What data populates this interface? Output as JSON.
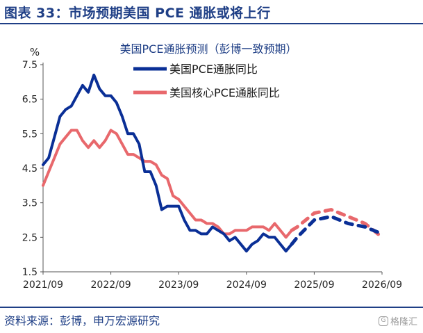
{
  "figure_title": "图表 33：市场预期美国 PCE 通胀或将上行",
  "source": "资料来源：彭博，申万宏源研究",
  "watermark": "格隆汇",
  "colors": {
    "brand": "#1f3f86",
    "pce": "#0a2f96",
    "core": "#e8686c"
  },
  "chart_data": {
    "type": "line",
    "title": "美国PCE通胀预测（彭博一致预期）",
    "ylabel": "%",
    "xlabel": "",
    "ylim": [
      1.5,
      7.5
    ],
    "yticks": [
      "7.5",
      "6.5",
      "5.5",
      "4.5",
      "3.5",
      "2.5",
      "1.5"
    ],
    "xticks": [
      "2021/09",
      "2022/09",
      "2023/09",
      "2024/09",
      "2025/09",
      "2026/09"
    ],
    "xlim": [
      "2021/09",
      "2026/09"
    ],
    "grid": false,
    "legend_position": "top",
    "series": [
      {
        "name": "美国PCE通胀同比",
        "actual_style": "solid",
        "forecast_style": "dashed",
        "actual": [
          [
            "2021/09",
            4.6
          ],
          [
            "2021/10",
            4.8
          ],
          [
            "2021/11",
            5.4
          ],
          [
            "2021/12",
            6.0
          ],
          [
            "2022/01",
            6.2
          ],
          [
            "2022/02",
            6.3
          ],
          [
            "2022/03",
            6.6
          ],
          [
            "2022/04",
            6.9
          ],
          [
            "2022/05",
            6.7
          ],
          [
            "2022/06",
            7.2
          ],
          [
            "2022/07",
            6.8
          ],
          [
            "2022/08",
            6.6
          ],
          [
            "2022/09",
            6.6
          ],
          [
            "2022/10",
            6.4
          ],
          [
            "2022/11",
            6.0
          ],
          [
            "2022/12",
            5.5
          ],
          [
            "2023/01",
            5.5
          ],
          [
            "2023/02",
            5.2
          ],
          [
            "2023/03",
            4.4
          ],
          [
            "2023/04",
            4.4
          ],
          [
            "2023/05",
            4.0
          ],
          [
            "2023/06",
            3.3
          ],
          [
            "2023/07",
            3.4
          ],
          [
            "2023/08",
            3.4
          ],
          [
            "2023/09",
            3.4
          ],
          [
            "2023/10",
            3.0
          ],
          [
            "2023/11",
            2.7
          ],
          [
            "2023/12",
            2.7
          ],
          [
            "2024/01",
            2.6
          ],
          [
            "2024/02",
            2.6
          ],
          [
            "2024/03",
            2.8
          ],
          [
            "2024/04",
            2.7
          ],
          [
            "2024/05",
            2.6
          ],
          [
            "2024/06",
            2.4
          ],
          [
            "2024/07",
            2.5
          ],
          [
            "2024/08",
            2.3
          ],
          [
            "2024/09",
            2.1
          ],
          [
            "2024/10",
            2.3
          ],
          [
            "2024/11",
            2.4
          ],
          [
            "2024/12",
            2.6
          ],
          [
            "2025/01",
            2.5
          ],
          [
            "2025/02",
            2.5
          ],
          [
            "2025/03",
            2.3
          ],
          [
            "2025/04",
            2.1
          ],
          [
            "2025/05",
            2.3
          ]
        ],
        "forecast": [
          [
            "2025/05",
            2.3
          ],
          [
            "2025/06",
            2.5
          ],
          [
            "2025/09",
            3.0
          ],
          [
            "2025/12",
            3.1
          ],
          [
            "2026/03",
            2.9
          ],
          [
            "2026/06",
            2.8
          ],
          [
            "2026/09",
            2.6
          ]
        ]
      },
      {
        "name": "美国核心PCE通胀同比",
        "actual_style": "solid",
        "forecast_style": "dashed",
        "actual": [
          [
            "2021/09",
            4.0
          ],
          [
            "2021/10",
            4.4
          ],
          [
            "2021/11",
            4.8
          ],
          [
            "2021/12",
            5.2
          ],
          [
            "2022/01",
            5.4
          ],
          [
            "2022/02",
            5.6
          ],
          [
            "2022/03",
            5.6
          ],
          [
            "2022/04",
            5.3
          ],
          [
            "2022/05",
            5.1
          ],
          [
            "2022/06",
            5.3
          ],
          [
            "2022/07",
            5.1
          ],
          [
            "2022/08",
            5.3
          ],
          [
            "2022/09",
            5.6
          ],
          [
            "2022/10",
            5.5
          ],
          [
            "2022/11",
            5.2
          ],
          [
            "2022/12",
            4.9
          ],
          [
            "2023/01",
            4.9
          ],
          [
            "2023/02",
            4.8
          ],
          [
            "2023/03",
            4.7
          ],
          [
            "2023/04",
            4.7
          ],
          [
            "2023/05",
            4.6
          ],
          [
            "2023/06",
            4.3
          ],
          [
            "2023/07",
            4.2
          ],
          [
            "2023/08",
            3.7
          ],
          [
            "2023/09",
            3.6
          ],
          [
            "2023/10",
            3.4
          ],
          [
            "2023/11",
            3.2
          ],
          [
            "2023/12",
            3.0
          ],
          [
            "2024/01",
            3.0
          ],
          [
            "2024/02",
            2.9
          ],
          [
            "2024/03",
            2.9
          ],
          [
            "2024/04",
            2.8
          ],
          [
            "2024/05",
            2.6
          ],
          [
            "2024/06",
            2.6
          ],
          [
            "2024/07",
            2.7
          ],
          [
            "2024/08",
            2.7
          ],
          [
            "2024/09",
            2.7
          ],
          [
            "2024/10",
            2.8
          ],
          [
            "2024/11",
            2.8
          ],
          [
            "2024/12",
            2.8
          ],
          [
            "2025/01",
            2.7
          ],
          [
            "2025/02",
            2.9
          ],
          [
            "2025/03",
            2.7
          ],
          [
            "2025/04",
            2.5
          ],
          [
            "2025/05",
            2.7
          ]
        ],
        "forecast": [
          [
            "2025/05",
            2.7
          ],
          [
            "2025/06",
            2.8
          ],
          [
            "2025/09",
            3.2
          ],
          [
            "2025/12",
            3.3
          ],
          [
            "2026/03",
            3.1
          ],
          [
            "2026/06",
            2.9
          ],
          [
            "2026/09",
            2.5
          ]
        ]
      }
    ]
  }
}
